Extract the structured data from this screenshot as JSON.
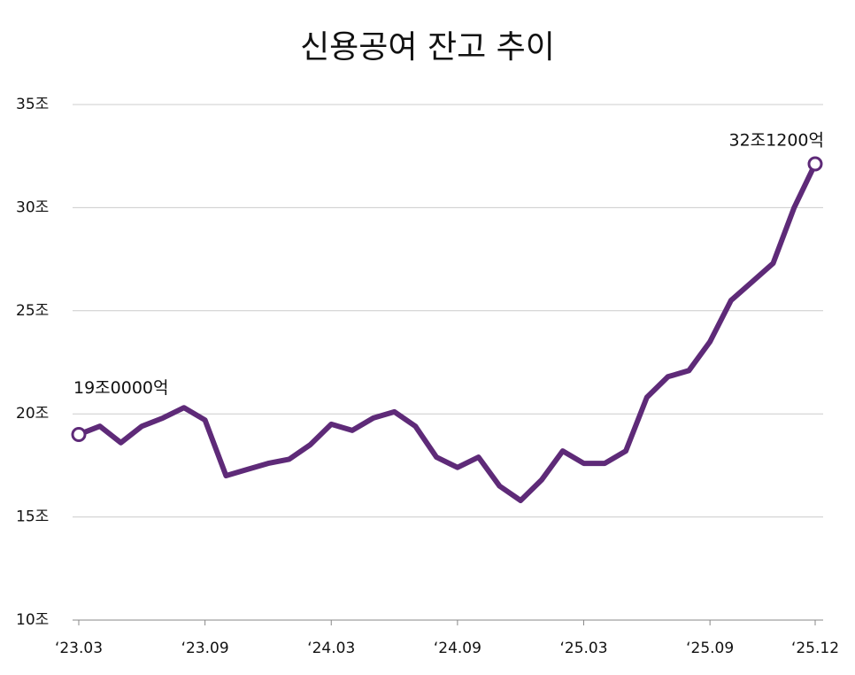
{
  "chart_data": {
    "type": "line",
    "title": "신용공여 잔고 추이",
    "categories": [
      "‘23.03",
      null,
      null,
      null,
      null,
      null,
      "‘23.09",
      null,
      null,
      null,
      null,
      null,
      "‘24.03",
      null,
      null,
      null,
      null,
      null,
      "‘24.09",
      null,
      null,
      null,
      null,
      null,
      "‘25.03",
      null,
      null,
      null,
      null,
      null,
      "‘25.09",
      null,
      null,
      null,
      null,
      "‘25.12"
    ],
    "series": [
      {
        "name": "신용공여 잔고",
        "color": "#5e2a78",
        "values": [
          19.0,
          19.4,
          18.6,
          19.4,
          19.8,
          20.3,
          19.7,
          17.0,
          17.3,
          17.6,
          17.8,
          18.5,
          19.5,
          19.2,
          19.8,
          20.1,
          19.4,
          17.9,
          17.4,
          17.9,
          16.5,
          15.8,
          16.8,
          18.2,
          17.6,
          17.6,
          18.2,
          20.8,
          21.8,
          22.1,
          23.5,
          25.5,
          26.4,
          27.3,
          30.0,
          32.12
        ],
        "value_labels": [
          "19조0000억",
          null,
          null,
          null,
          null,
          null,
          null,
          null,
          null,
          null,
          null,
          null,
          null,
          null,
          null,
          null,
          null,
          null,
          null,
          null,
          null,
          null,
          null,
          null,
          null,
          null,
          null,
          null,
          null,
          null,
          null,
          null,
          null,
          null,
          null,
          "32조1200억"
        ]
      }
    ],
    "ylim": [
      10,
      35
    ],
    "yticks": [
      {
        "value": 10,
        "label": "10조"
      },
      {
        "value": 15,
        "label": "15조"
      },
      {
        "value": 20,
        "label": "20조"
      },
      {
        "value": 25,
        "label": "25조"
      },
      {
        "value": 30,
        "label": "30조"
      },
      {
        "value": 35,
        "label": "35조"
      }
    ],
    "grid": true
  }
}
